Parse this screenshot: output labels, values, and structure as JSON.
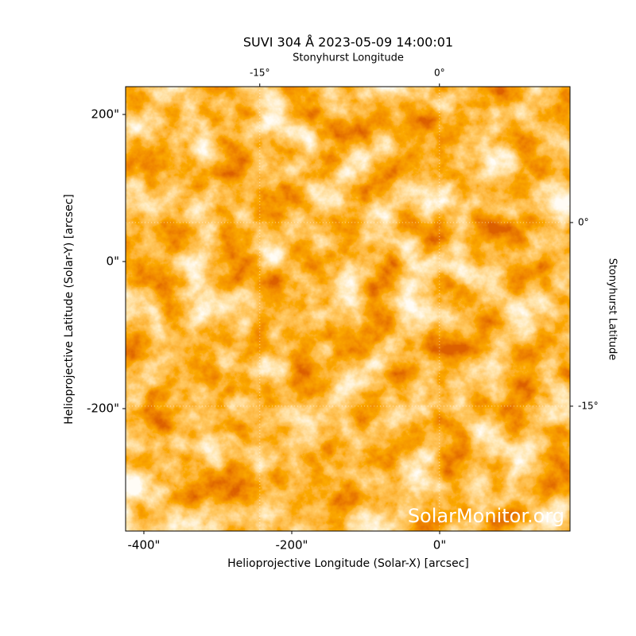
{
  "chart_data": {
    "type": "image",
    "title": "SUVI 304 Å 2023-05-09 14:00:01",
    "xlabel": "Helioprojective Longitude (Solar-X) [arcsec]",
    "ylabel": "Helioprojective Latitude (Solar-Y) [arcsec]",
    "x2label": "Stonyhurst Longitude",
    "y2label": "Stonyhurst Latitude",
    "watermark": "SolarMonitor.org",
    "xlim": [
      -424.7,
      176.3
    ],
    "ylim": [
      -366.5,
      237.8
    ],
    "xticks": [
      {
        "value": -400,
        "label": "-400\""
      },
      {
        "value": -200,
        "label": "-200\""
      },
      {
        "value": 0,
        "label": "0\""
      }
    ],
    "yticks": [
      {
        "value": 200,
        "label": "200\""
      },
      {
        "value": 0,
        "label": "0\""
      },
      {
        "value": -200,
        "label": "-200\""
      }
    ],
    "x2lim": [
      -26.2,
      10.9
    ],
    "x2ticks": [
      {
        "value": -15,
        "label": "-15°"
      },
      {
        "value": 0,
        "label": "0°"
      }
    ],
    "y2lim": [
      -25.2,
      11.1
    ],
    "y2ticks": [
      {
        "value": 0,
        "label": "0°"
      },
      {
        "value": -15,
        "label": "-15°"
      }
    ],
    "grid": true
  }
}
